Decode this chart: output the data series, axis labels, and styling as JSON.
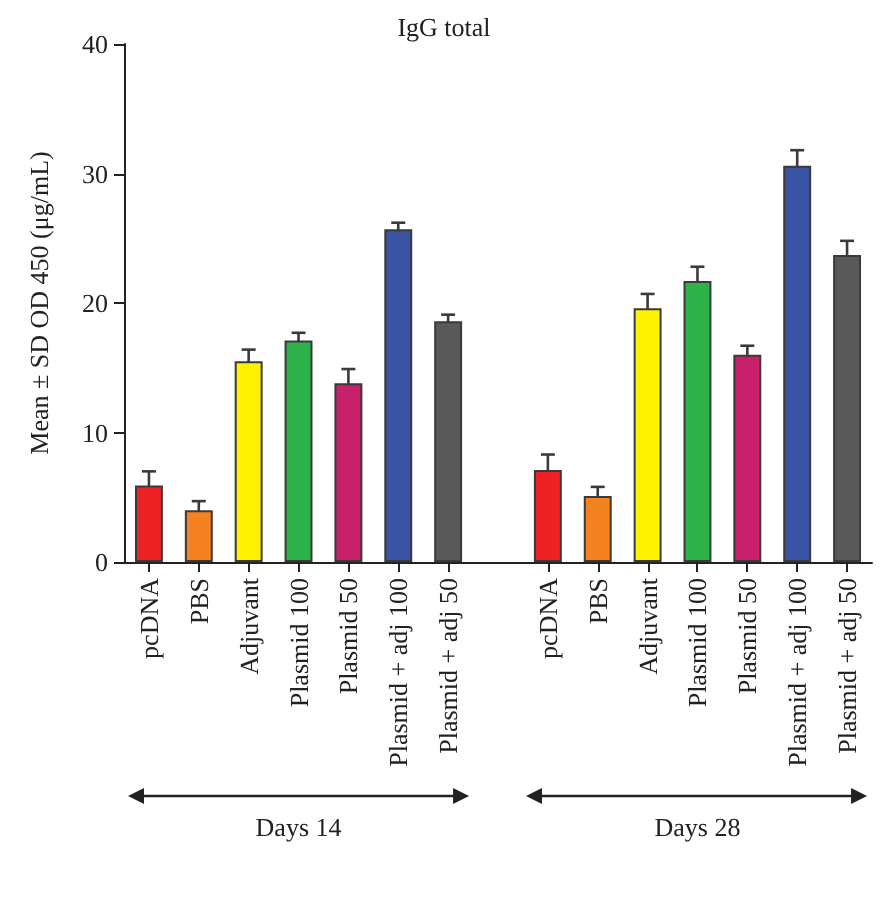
{
  "chart_data": {
    "type": "bar",
    "title": "IgG total",
    "ylabel": "Mean ± SD OD 450 (μg/mL)",
    "categories": [
      "pcDNA",
      "PBS",
      "Adjuvant",
      "Plasmid 100",
      "Plasmid 50",
      "Plasmid + adj 100",
      "Plasmid + adj 50",
      null,
      "pcDNA",
      "PBS",
      "Adjuvant",
      "Plasmid 100",
      "Plasmid 50",
      "Plasmid + adj 100",
      "Plasmid + adj 50"
    ],
    "values": [
      5.9,
      4.0,
      15.5,
      17.1,
      13.8,
      25.7,
      18.6,
      null,
      7.1,
      5.1,
      19.6,
      21.7,
      16.0,
      30.6,
      23.7
    ],
    "errors": [
      1.1,
      0.7,
      0.9,
      0.6,
      1.1,
      0.5,
      0.5,
      null,
      1.2,
      0.7,
      1.1,
      1.1,
      0.7,
      1.2,
      1.1
    ],
    "colors": [
      "#ee2124",
      "#f58220",
      "#fff200",
      "#2db34a",
      "#c8206a",
      "#3a53a4",
      "#58595b",
      null,
      "#ee2124",
      "#f58220",
      "#fff200",
      "#2db34a",
      "#c8206a",
      "#3a53a4",
      "#58595b"
    ],
    "ylim": [
      0,
      40
    ],
    "yticks": [
      0,
      10,
      20,
      30,
      40
    ],
    "grid": false,
    "annotations": [
      "Days 14",
      "Days 28"
    ]
  }
}
